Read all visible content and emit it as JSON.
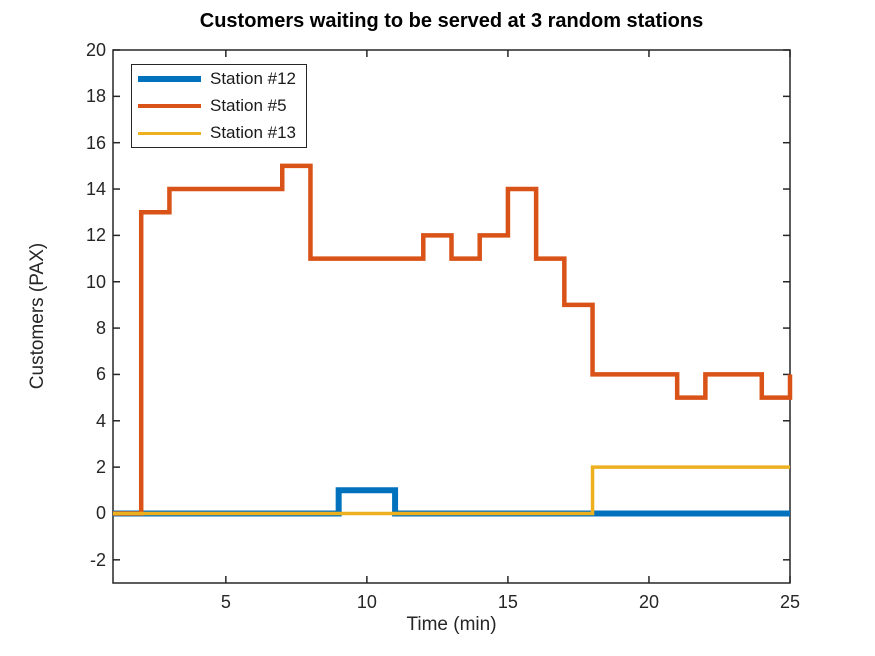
{
  "figure": {
    "title": "Customers waiting to be served at 3 random stations",
    "xlabel": "Time (min)",
    "ylabel": "Customers (PAX)"
  },
  "legend": {
    "position": "top-left",
    "border_color": "#262626",
    "entries": [
      {
        "label": "Station #12",
        "color": "#0072BD",
        "line_width": 6
      },
      {
        "label": "Station #5",
        "color": "#D95319",
        "line_width": 4.5
      },
      {
        "label": "Station #13",
        "color": "#EDB120",
        "line_width": 3.5
      }
    ]
  },
  "chart_data": {
    "type": "line",
    "subtype": "stairs",
    "title": "Customers waiting to be served at 3 random stations",
    "xlabel": "Time (min)",
    "ylabel": "Customers (PAX)",
    "xlim": [
      1,
      25
    ],
    "ylim": [
      -3,
      20
    ],
    "xticks": [
      5,
      10,
      15,
      20,
      25
    ],
    "yticks": [
      -2,
      0,
      2,
      4,
      6,
      8,
      10,
      12,
      14,
      16,
      18,
      20
    ],
    "grid": false,
    "legend_position": "top-left",
    "axis_color": "#262626",
    "series": [
      {
        "name": "Station #12",
        "color": "#0072BD",
        "line_width": 6,
        "x": [
          1,
          9,
          11,
          25
        ],
        "y": [
          0,
          1,
          0,
          0
        ]
      },
      {
        "name": "Station #5",
        "color": "#D95319",
        "line_width": 4.5,
        "x": [
          1,
          2,
          3,
          7,
          8,
          12,
          13,
          14,
          15,
          16,
          17,
          18,
          21,
          22,
          24,
          25
        ],
        "y": [
          0,
          13,
          14,
          15,
          11,
          12,
          11,
          12,
          14,
          11,
          9,
          6,
          5,
          6,
          5,
          6
        ]
      },
      {
        "name": "Station #13",
        "color": "#EDB120",
        "line_width": 3.5,
        "x": [
          1,
          18,
          25
        ],
        "y": [
          0,
          2,
          2
        ]
      }
    ]
  }
}
